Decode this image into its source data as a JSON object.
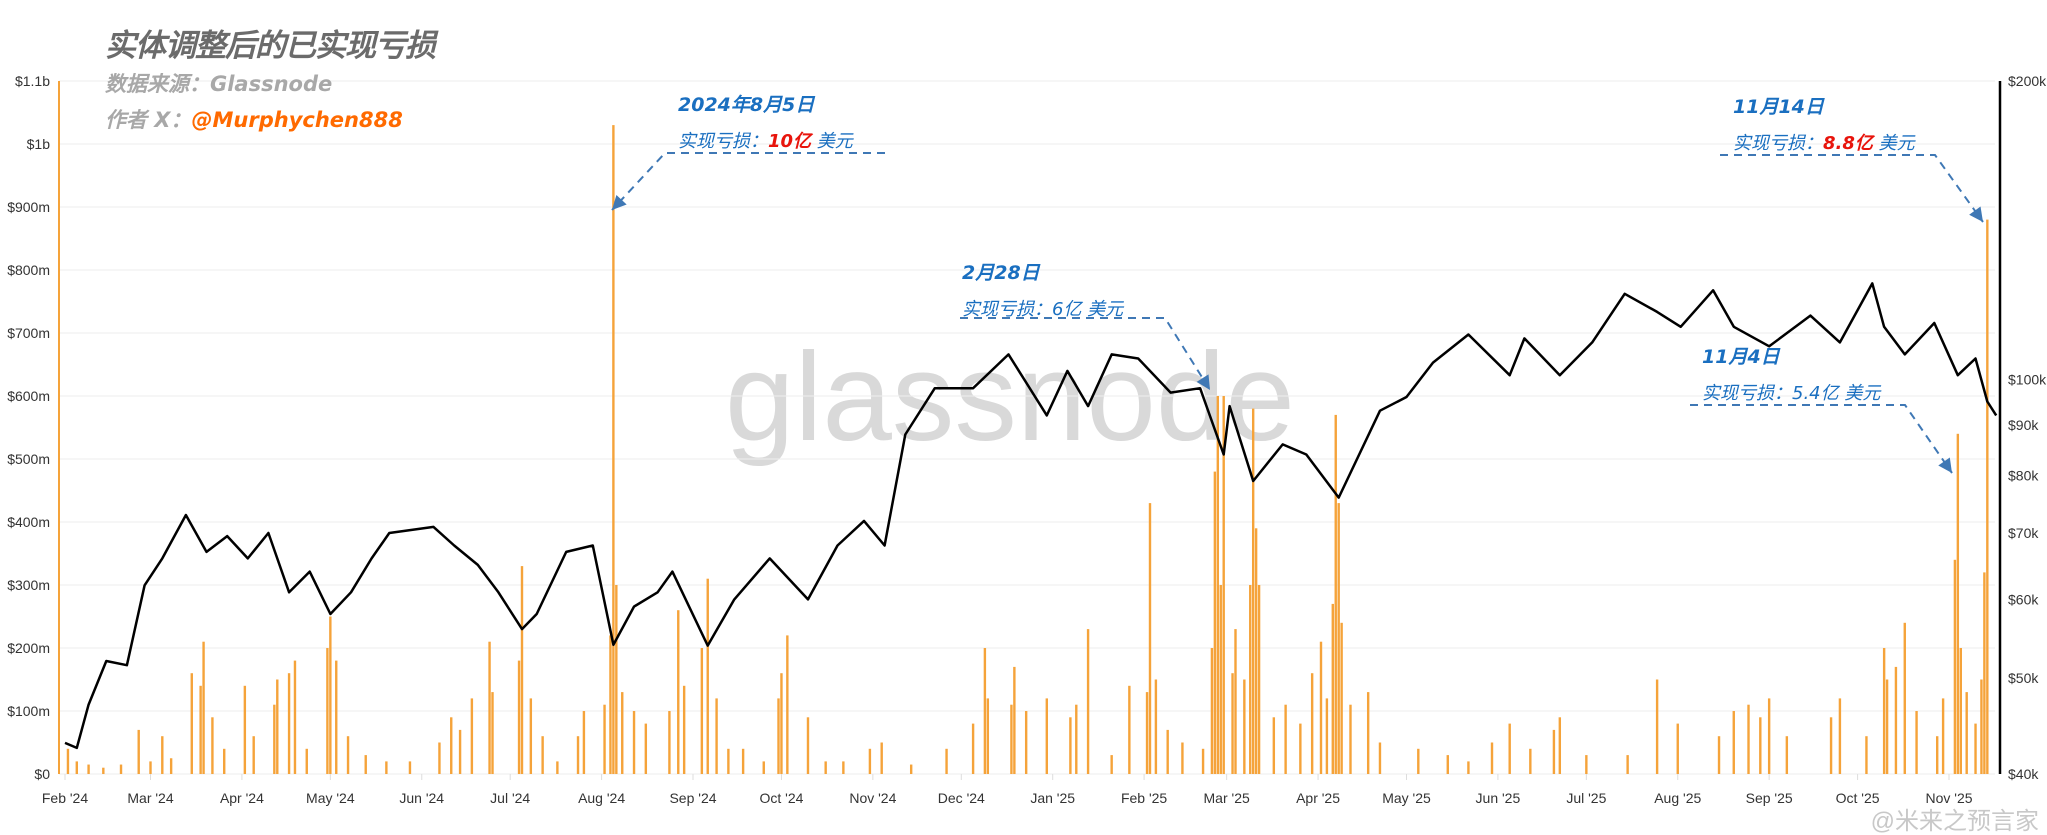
{
  "header": {
    "title": "实体调整后的已实现亏损",
    "source_label": "数据来源：",
    "source_value": "Glassnode",
    "author_label": "作者 X：",
    "author_value": "@Murphychen888"
  },
  "watermarks": {
    "center": "glassnode",
    "corner": "@米来之预言家"
  },
  "annotations": [
    {
      "date": "2024年8月5日",
      "label": "实现亏损：",
      "value": "10亿",
      "unit": " 美元",
      "value_color": "#e8140c"
    },
    {
      "date": "2月28日",
      "label": "实现亏损：",
      "value": "6亿",
      "unit": " 美元",
      "value_color": "#1a6fc0"
    },
    {
      "date": "11月14日",
      "label": "实现亏损：",
      "value": "8.8亿",
      "unit": " 美元",
      "value_color": "#e8140c"
    },
    {
      "date": "11月4日",
      "label": "实现亏损：",
      "value": "5.4亿",
      "unit": " 美元",
      "value_color": "#1a6fc0"
    }
  ],
  "colors": {
    "bars": "#f5a33a",
    "price": "#000000",
    "annotation": "#1a6fc0",
    "arrow": "#3f78b5",
    "grid": "#eeeeee"
  },
  "chart_data": {
    "type": "bar+line",
    "x_tick_labels": [
      "Feb '24",
      "Mar '24",
      "Apr '24",
      "May '24",
      "Jun '24",
      "Jul '24",
      "Aug '24",
      "Sep '24",
      "Oct '24",
      "Nov '24",
      "Dec '24",
      "Jan '25",
      "Feb '25",
      "Mar '25",
      "Apr '25",
      "May '25",
      "Jun '25",
      "Jul '25",
      "Aug '25",
      "Sep '25",
      "Oct '25",
      "Nov '25"
    ],
    "x_tick_dates": [
      "2024-02-01",
      "2024-03-01",
      "2024-04-01",
      "2024-05-01",
      "2024-06-01",
      "2024-07-01",
      "2024-08-01",
      "2024-09-01",
      "2024-10-01",
      "2024-11-01",
      "2024-12-01",
      "2025-01-01",
      "2025-02-01",
      "2025-03-01",
      "2025-04-01",
      "2025-05-01",
      "2025-06-01",
      "2025-07-01",
      "2025-08-01",
      "2025-09-01",
      "2025-10-01",
      "2025-11-01"
    ],
    "left_axis": {
      "ticks": [
        "$0",
        "$100m",
        "$200m",
        "$300m",
        "$400m",
        "$500m",
        "$600m",
        "$700m",
        "$800m",
        "$900m",
        "$1b",
        "$1.1b"
      ],
      "range_musd": [
        0,
        1100
      ]
    },
    "right_axis": {
      "scale": "log",
      "ticks": [
        "$40k",
        "$50k",
        "$60k",
        "$70k",
        "$80k",
        "$90k",
        "$100k",
        "$200k"
      ],
      "tick_values": [
        40000,
        50000,
        60000,
        70000,
        80000,
        90000,
        100000,
        200000
      ],
      "range": [
        40000,
        200000
      ]
    },
    "grid": true,
    "bars_musd": [
      [
        "2024-02-02",
        40
      ],
      [
        "2024-02-05",
        20
      ],
      [
        "2024-02-09",
        15
      ],
      [
        "2024-02-14",
        10
      ],
      [
        "2024-02-20",
        15
      ],
      [
        "2024-02-26",
        70
      ],
      [
        "2024-03-01",
        20
      ],
      [
        "2024-03-05",
        60
      ],
      [
        "2024-03-08",
        25
      ],
      [
        "2024-03-15",
        160
      ],
      [
        "2024-03-18",
        140
      ],
      [
        "2024-03-19",
        210
      ],
      [
        "2024-03-22",
        90
      ],
      [
        "2024-03-26",
        40
      ],
      [
        "2024-04-02",
        140
      ],
      [
        "2024-04-05",
        60
      ],
      [
        "2024-04-12",
        110
      ],
      [
        "2024-04-13",
        150
      ],
      [
        "2024-04-17",
        160
      ],
      [
        "2024-04-19",
        180
      ],
      [
        "2024-04-23",
        40
      ],
      [
        "2024-04-30",
        200
      ],
      [
        "2024-05-01",
        250
      ],
      [
        "2024-05-03",
        180
      ],
      [
        "2024-05-07",
        60
      ],
      [
        "2024-05-13",
        30
      ],
      [
        "2024-05-20",
        20
      ],
      [
        "2024-05-28",
        20
      ],
      [
        "2024-06-07",
        50
      ],
      [
        "2024-06-11",
        90
      ],
      [
        "2024-06-14",
        70
      ],
      [
        "2024-06-18",
        120
      ],
      [
        "2024-06-24",
        210
      ],
      [
        "2024-06-25",
        130
      ],
      [
        "2024-07-04",
        180
      ],
      [
        "2024-07-05",
        330
      ],
      [
        "2024-07-08",
        120
      ],
      [
        "2024-07-12",
        60
      ],
      [
        "2024-07-17",
        20
      ],
      [
        "2024-07-24",
        60
      ],
      [
        "2024-07-26",
        100
      ],
      [
        "2024-08-02",
        110
      ],
      [
        "2024-08-04",
        220
      ],
      [
        "2024-08-05",
        1030
      ],
      [
        "2024-08-06",
        300
      ],
      [
        "2024-08-08",
        130
      ],
      [
        "2024-08-12",
        100
      ],
      [
        "2024-08-16",
        80
      ],
      [
        "2024-08-24",
        100
      ],
      [
        "2024-08-27",
        260
      ],
      [
        "2024-08-29",
        140
      ],
      [
        "2024-09-04",
        200
      ],
      [
        "2024-09-06",
        310
      ],
      [
        "2024-09-09",
        120
      ],
      [
        "2024-09-13",
        40
      ],
      [
        "2024-09-18",
        40
      ],
      [
        "2024-09-25",
        20
      ],
      [
        "2024-09-30",
        120
      ],
      [
        "2024-10-01",
        160
      ],
      [
        "2024-10-03",
        220
      ],
      [
        "2024-10-10",
        90
      ],
      [
        "2024-10-16",
        20
      ],
      [
        "2024-10-22",
        20
      ],
      [
        "2024-10-31",
        40
      ],
      [
        "2024-11-04",
        50
      ],
      [
        "2024-11-14",
        15
      ],
      [
        "2024-11-26",
        40
      ],
      [
        "2024-12-05",
        80
      ],
      [
        "2024-12-09",
        200
      ],
      [
        "2024-12-10",
        120
      ],
      [
        "2024-12-18",
        110
      ],
      [
        "2024-12-19",
        170
      ],
      [
        "2024-12-23",
        100
      ],
      [
        "2024-12-30",
        120
      ],
      [
        "2025-01-07",
        90
      ],
      [
        "2025-01-09",
        110
      ],
      [
        "2025-01-13",
        230
      ],
      [
        "2025-01-21",
        30
      ],
      [
        "2025-01-27",
        140
      ],
      [
        "2025-02-02",
        130
      ],
      [
        "2025-02-03",
        430
      ],
      [
        "2025-02-05",
        150
      ],
      [
        "2025-02-09",
        70
      ],
      [
        "2025-02-14",
        50
      ],
      [
        "2025-02-21",
        40
      ],
      [
        "2025-02-24",
        200
      ],
      [
        "2025-02-25",
        480
      ],
      [
        "2025-02-26",
        600
      ],
      [
        "2025-02-27",
        300
      ],
      [
        "2025-02-28",
        600
      ],
      [
        "2025-03-03",
        160
      ],
      [
        "2025-03-04",
        230
      ],
      [
        "2025-03-07",
        150
      ],
      [
        "2025-03-09",
        300
      ],
      [
        "2025-03-10",
        580
      ],
      [
        "2025-03-11",
        390
      ],
      [
        "2025-03-12",
        300
      ],
      [
        "2025-03-17",
        90
      ],
      [
        "2025-03-21",
        110
      ],
      [
        "2025-03-26",
        80
      ],
      [
        "2025-03-30",
        160
      ],
      [
        "2025-04-02",
        210
      ],
      [
        "2025-04-04",
        120
      ],
      [
        "2025-04-06",
        270
      ],
      [
        "2025-04-07",
        570
      ],
      [
        "2025-04-08",
        430
      ],
      [
        "2025-04-09",
        240
      ],
      [
        "2025-04-12",
        110
      ],
      [
        "2025-04-18",
        130
      ],
      [
        "2025-04-22",
        50
      ],
      [
        "2025-05-05",
        40
      ],
      [
        "2025-05-15",
        30
      ],
      [
        "2025-05-22",
        20
      ],
      [
        "2025-05-30",
        50
      ],
      [
        "2025-06-05",
        80
      ],
      [
        "2025-06-12",
        40
      ],
      [
        "2025-06-20",
        70
      ],
      [
        "2025-06-22",
        90
      ],
      [
        "2025-07-01",
        30
      ],
      [
        "2025-07-15",
        30
      ],
      [
        "2025-07-25",
        150
      ],
      [
        "2025-08-01",
        80
      ],
      [
        "2025-08-15",
        60
      ],
      [
        "2025-08-20",
        100
      ],
      [
        "2025-08-25",
        110
      ],
      [
        "2025-08-29",
        90
      ],
      [
        "2025-09-01",
        120
      ],
      [
        "2025-09-07",
        60
      ],
      [
        "2025-09-22",
        90
      ],
      [
        "2025-09-25",
        120
      ],
      [
        "2025-10-04",
        60
      ],
      [
        "2025-10-10",
        200
      ],
      [
        "2025-10-11",
        150
      ],
      [
        "2025-10-14",
        170
      ],
      [
        "2025-10-17",
        240
      ],
      [
        "2025-10-21",
        100
      ],
      [
        "2025-10-28",
        60
      ],
      [
        "2025-10-30",
        120
      ],
      [
        "2025-11-03",
        340
      ],
      [
        "2025-11-04",
        540
      ],
      [
        "2025-11-05",
        200
      ],
      [
        "2025-11-07",
        130
      ],
      [
        "2025-11-10",
        80
      ],
      [
        "2025-11-12",
        150
      ],
      [
        "2025-11-13",
        320
      ],
      [
        "2025-11-14",
        880
      ]
    ],
    "price_usd": [
      [
        "2024-02-01",
        43000
      ],
      [
        "2024-02-05",
        42500
      ],
      [
        "2024-02-09",
        47000
      ],
      [
        "2024-02-15",
        52000
      ],
      [
        "2024-02-22",
        51500
      ],
      [
        "2024-02-28",
        62000
      ],
      [
        "2024-03-05",
        66000
      ],
      [
        "2024-03-13",
        73000
      ],
      [
        "2024-03-20",
        67000
      ],
      [
        "2024-03-27",
        69500
      ],
      [
        "2024-04-03",
        66000
      ],
      [
        "2024-04-10",
        70000
      ],
      [
        "2024-04-17",
        61000
      ],
      [
        "2024-04-24",
        64000
      ],
      [
        "2024-05-01",
        58000
      ],
      [
        "2024-05-08",
        61000
      ],
      [
        "2024-05-15",
        66000
      ],
      [
        "2024-05-21",
        70000
      ],
      [
        "2024-06-05",
        71000
      ],
      [
        "2024-06-12",
        68000
      ],
      [
        "2024-06-20",
        65000
      ],
      [
        "2024-06-27",
        61000
      ],
      [
        "2024-07-05",
        56000
      ],
      [
        "2024-07-10",
        58000
      ],
      [
        "2024-07-20",
        67000
      ],
      [
        "2024-07-29",
        68000
      ],
      [
        "2024-08-05",
        54000
      ],
      [
        "2024-08-12",
        59000
      ],
      [
        "2024-08-20",
        61000
      ],
      [
        "2024-08-25",
        64000
      ],
      [
        "2024-09-06",
        53900
      ],
      [
        "2024-09-15",
        60000
      ],
      [
        "2024-09-27",
        66000
      ],
      [
        "2024-10-10",
        60000
      ],
      [
        "2024-10-20",
        68000
      ],
      [
        "2024-10-29",
        72000
      ],
      [
        "2024-11-05",
        68000
      ],
      [
        "2024-11-12",
        88000
      ],
      [
        "2024-11-22",
        98000
      ],
      [
        "2024-12-05",
        98000
      ],
      [
        "2024-12-17",
        106000
      ],
      [
        "2024-12-30",
        92000
      ],
      [
        "2025-01-06",
        102000
      ],
      [
        "2025-01-13",
        94000
      ],
      [
        "2025-01-21",
        106000
      ],
      [
        "2025-01-30",
        105000
      ],
      [
        "2025-02-10",
        97000
      ],
      [
        "2025-02-20",
        98000
      ],
      [
        "2025-02-28",
        84000
      ],
      [
        "2025-03-02",
        94000
      ],
      [
        "2025-03-10",
        79000
      ],
      [
        "2025-03-20",
        86000
      ],
      [
        "2025-03-28",
        84000
      ],
      [
        "2025-04-08",
        76000
      ],
      [
        "2025-04-22",
        93000
      ],
      [
        "2025-05-01",
        96000
      ],
      [
        "2025-05-10",
        104000
      ],
      [
        "2025-05-22",
        111000
      ],
      [
        "2025-06-05",
        101000
      ],
      [
        "2025-06-10",
        110000
      ],
      [
        "2025-06-22",
        101000
      ],
      [
        "2025-07-03",
        109000
      ],
      [
        "2025-07-14",
        122000
      ],
      [
        "2025-07-25",
        117000
      ],
      [
        "2025-08-02",
        113000
      ],
      [
        "2025-08-13",
        123000
      ],
      [
        "2025-08-20",
        113000
      ],
      [
        "2025-09-01",
        108000
      ],
      [
        "2025-09-15",
        116000
      ],
      [
        "2025-09-25",
        109000
      ],
      [
        "2025-10-06",
        125000
      ],
      [
        "2025-10-10",
        113000
      ],
      [
        "2025-10-17",
        106000
      ],
      [
        "2025-10-27",
        114000
      ],
      [
        "2025-11-04",
        101000
      ],
      [
        "2025-11-10",
        105000
      ],
      [
        "2025-11-14",
        95000
      ],
      [
        "2025-11-17",
        92000
      ]
    ]
  }
}
